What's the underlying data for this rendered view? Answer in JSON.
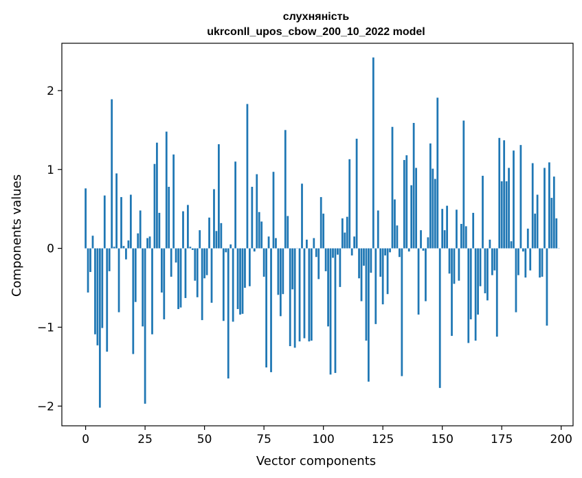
{
  "chart_data": {
    "type": "bar",
    "title": "слухняність",
    "subtitle": "ukrconll_upos_cbow_200_10_2022 model",
    "xlabel": "Vector components",
    "ylabel": "Components values",
    "xlim": [
      -10,
      205
    ],
    "ylim": [
      -2.25,
      2.6
    ],
    "xticks": [
      0,
      25,
      50,
      75,
      100,
      125,
      150,
      175,
      200
    ],
    "yticks": [
      -2,
      -1,
      0,
      1,
      2
    ],
    "xtick_labels": [
      "0",
      "25",
      "50",
      "75",
      "100",
      "125",
      "150",
      "175",
      "200"
    ],
    "ytick_labels": [
      "−2",
      "−1",
      "0",
      "1",
      "2"
    ],
    "grid": false,
    "color": "#1f77b4",
    "x_start": 0,
    "values": [
      0.76,
      -0.56,
      -0.3,
      0.16,
      -1.09,
      -1.23,
      -2.02,
      -1.01,
      0.67,
      -1.31,
      -0.29,
      1.89,
      0.02,
      0.95,
      -0.81,
      0.65,
      0.03,
      -0.14,
      0.1,
      0.68,
      -1.34,
      -0.68,
      0.19,
      0.48,
      -0.99,
      -1.97,
      0.13,
      0.15,
      -1.09,
      1.07,
      1.34,
      0.45,
      -0.56,
      -0.9,
      1.48,
      0.78,
      -0.36,
      1.19,
      -0.18,
      -0.77,
      -0.75,
      0.47,
      -0.63,
      0.55,
      0.02,
      -0.02,
      -0.41,
      -0.62,
      0.23,
      -0.91,
      -0.38,
      -0.34,
      0.39,
      -0.69,
      0.75,
      0.22,
      1.32,
      0.32,
      -0.92,
      -0.05,
      -1.65,
      0.05,
      -0.93,
      1.1,
      -0.77,
      -0.84,
      -0.83,
      -0.5,
      1.83,
      -0.48,
      0.78,
      -0.04,
      0.94,
      0.46,
      0.34,
      -0.36,
      -1.51,
      0.15,
      -1.57,
      0.97,
      0.13,
      -0.59,
      -0.86,
      -0.58,
      1.5,
      0.41,
      -1.24,
      -0.52,
      -1.26,
      0.0,
      -1.18,
      0.82,
      -1.14,
      0.11,
      -1.18,
      -1.17,
      0.13,
      -0.11,
      -0.39,
      0.65,
      0.44,
      -0.29,
      -0.99,
      -1.6,
      -0.12,
      -1.58,
      -0.08,
      -0.49,
      0.38,
      0.2,
      0.4,
      1.13,
      -0.09,
      0.15,
      1.39,
      -0.38,
      -0.67,
      -0.22,
      -1.17,
      -1.69,
      -0.31,
      2.42,
      -0.96,
      0.48,
      -0.36,
      -0.71,
      -0.09,
      -0.58,
      -0.05,
      1.54,
      0.62,
      0.29,
      -0.11,
      -1.62,
      1.12,
      1.18,
      -0.04,
      0.8,
      1.59,
      1.02,
      -0.84,
      0.23,
      -0.03,
      -0.67,
      0.14,
      1.33,
      1.01,
      0.88,
      1.91,
      -1.77,
      0.5,
      0.23,
      0.54,
      -0.32,
      -1.11,
      -0.45,
      0.49,
      -0.41,
      0.31,
      1.62,
      0.28,
      -1.2,
      -0.9,
      0.45,
      -1.17,
      -0.84,
      -0.48,
      0.92,
      -0.57,
      -0.66,
      0.11,
      -0.34,
      -0.28,
      -1.12,
      1.4,
      0.85,
      1.37,
      0.85,
      1.02,
      0.09,
      1.24,
      -0.81,
      -0.34,
      1.31,
      -0.04,
      -0.37,
      0.25,
      -0.28,
      1.08,
      0.44,
      0.68,
      -0.37,
      -0.36,
      1.02,
      -0.98,
      1.09,
      0.64,
      0.91,
      0.38,
      0.0
    ]
  }
}
